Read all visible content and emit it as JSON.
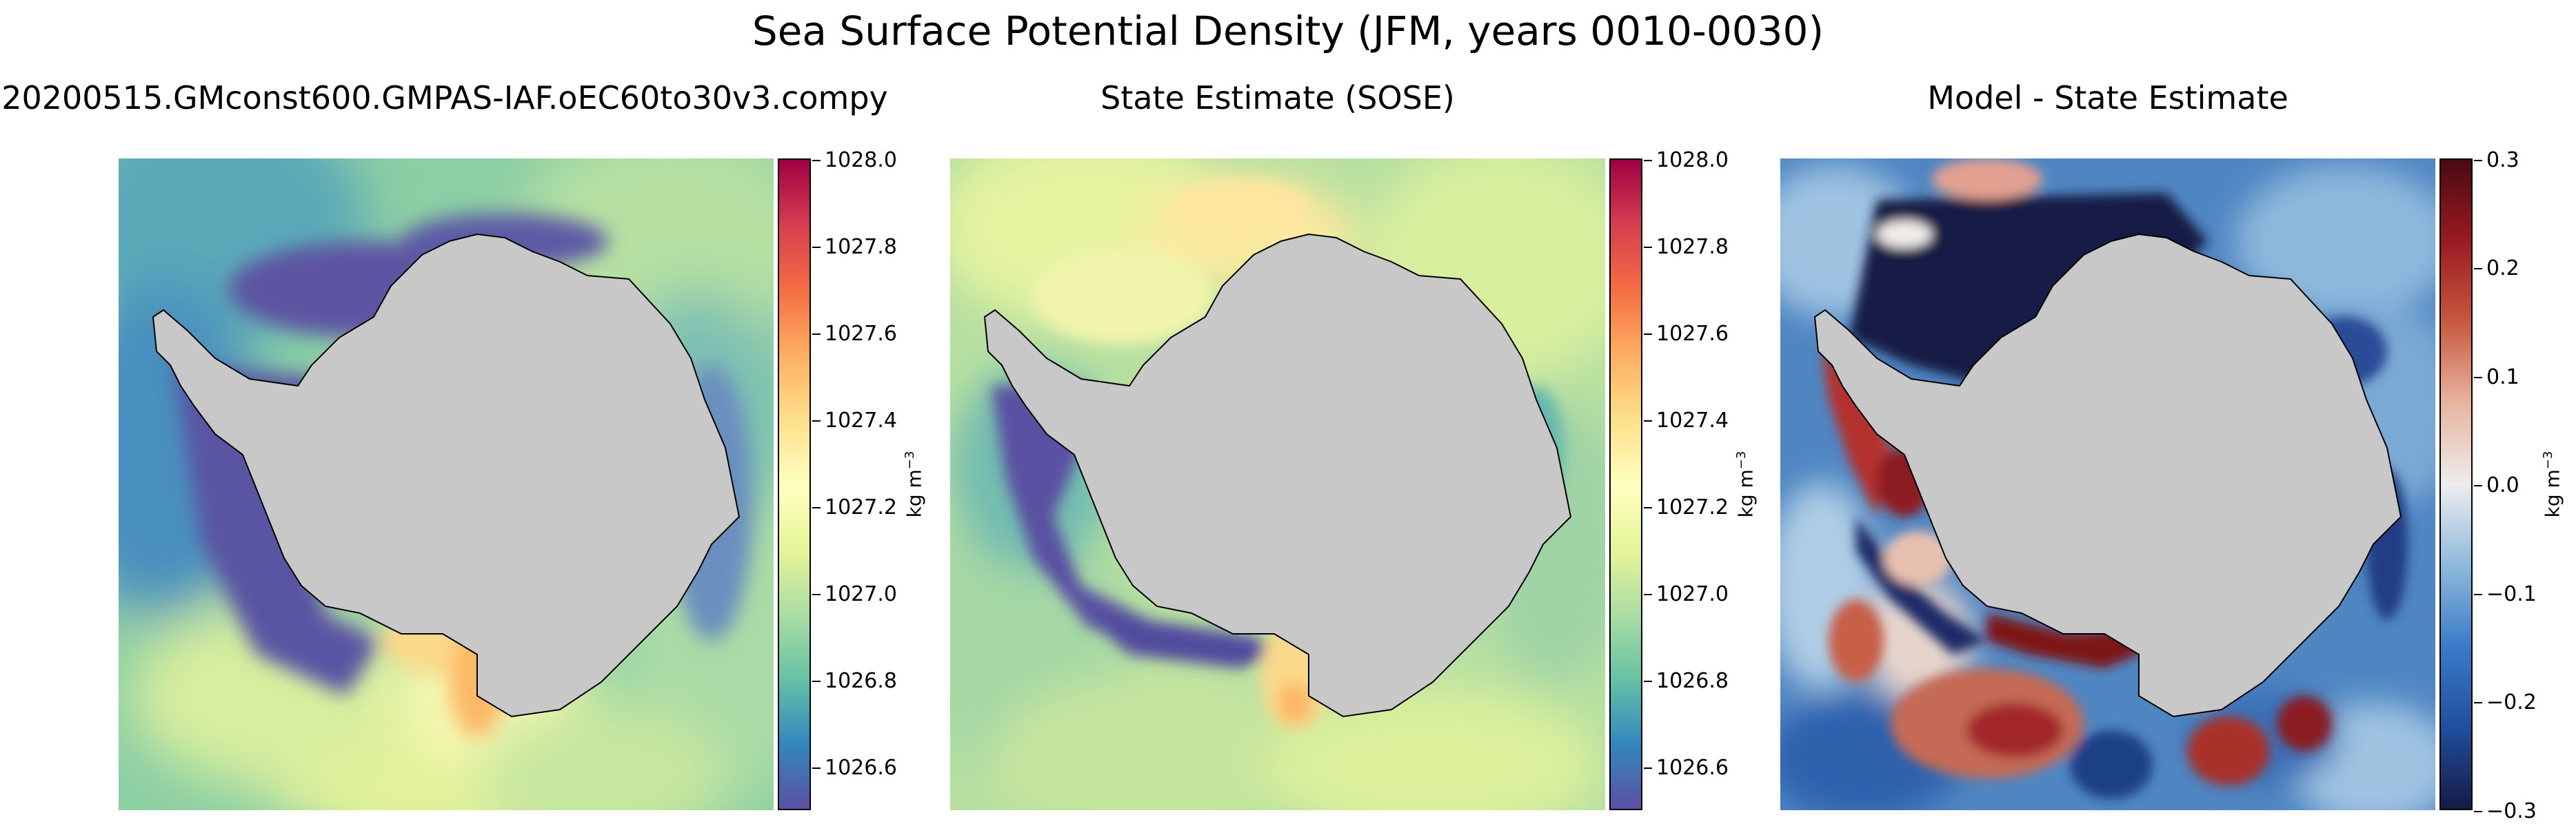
{
  "figure": {
    "suptitle": "Sea Surface Potential Density (JFM, years 0010-0030)"
  },
  "panels": [
    {
      "title": "20200515.GMconst600.GMPAS-IAF.oEC60to30v3.compy",
      "colormap": "Spectral_r"
    },
    {
      "title": "State Estimate (SOSE)",
      "colormap": "Spectral_r"
    },
    {
      "title": "Model - State Estimate",
      "colormap": "RdBu_r"
    }
  ],
  "colorbars": [
    {
      "label_main": "kg m",
      "label_exp": "−3",
      "range": [
        1026.5,
        1028.0
      ],
      "ticks": [
        "1028.0",
        "1027.8",
        "1027.6",
        "1027.4",
        "1027.2",
        "1027.0",
        "1026.8",
        "1026.6"
      ],
      "tick_values": [
        1028.0,
        1027.8,
        1027.6,
        1027.4,
        1027.2,
        1027.0,
        1026.8,
        1026.6
      ],
      "colors": [
        "#5e4fa2",
        "#3288bd",
        "#66c2a5",
        "#abdda4",
        "#e6f598",
        "#ffffbf",
        "#fee08b",
        "#fdae61",
        "#f46d43",
        "#d53e4f",
        "#9e0142"
      ]
    },
    {
      "label_main": "kg m",
      "label_exp": "−3",
      "range": [
        1026.5,
        1028.0
      ],
      "ticks": [
        "1028.0",
        "1027.8",
        "1027.6",
        "1027.4",
        "1027.2",
        "1027.0",
        "1026.8",
        "1026.6"
      ],
      "tick_values": [
        1028.0,
        1027.8,
        1027.6,
        1027.4,
        1027.2,
        1027.0,
        1026.8,
        1026.6
      ],
      "colors": [
        "#5e4fa2",
        "#3288bd",
        "#66c2a5",
        "#abdda4",
        "#e6f598",
        "#ffffbf",
        "#fee08b",
        "#fdae61",
        "#f46d43",
        "#d53e4f",
        "#9e0142"
      ]
    },
    {
      "label_main": "kg m",
      "label_exp": "−3",
      "range": [
        -0.3,
        0.3
      ],
      "ticks": [
        "0.3",
        "0.2",
        "0.1",
        "0.0",
        "−0.1",
        "−0.2",
        "−0.3"
      ],
      "tick_values": [
        0.3,
        0.2,
        0.1,
        0.0,
        -0.1,
        -0.2,
        -0.3
      ],
      "colors": [
        "#151b45",
        "#1f4f9c",
        "#3a7bc8",
        "#8fb9dc",
        "#ededed",
        "#e8b4a0",
        "#c8593f",
        "#9b1a22",
        "#4a0a12"
      ]
    }
  ],
  "colors": {
    "land": "#c8c8c8",
    "coast": "#000000"
  }
}
